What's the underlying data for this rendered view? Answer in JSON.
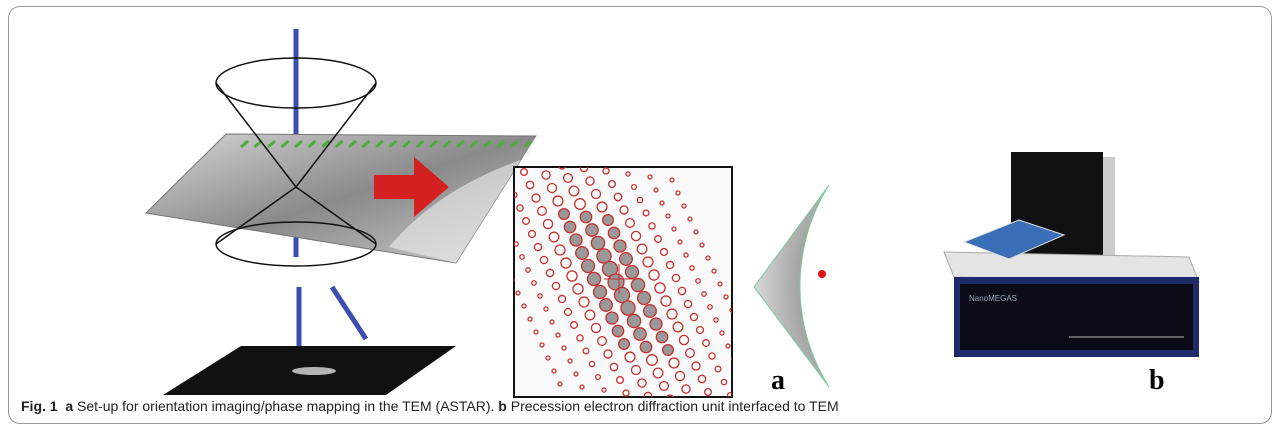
{
  "figure": {
    "panel_labels": [
      "a",
      "b"
    ],
    "device_label": "NanoMEGAS",
    "caption": {
      "figure_number": "Fig. 1",
      "parts": [
        {
          "label": "a",
          "text": "Set-up for orientation imaging/phase mapping in the TEM (ASTAR)."
        },
        {
          "label": "b",
          "text": "Precession electron diffraction unit interfaced to TEM"
        }
      ]
    }
  }
}
